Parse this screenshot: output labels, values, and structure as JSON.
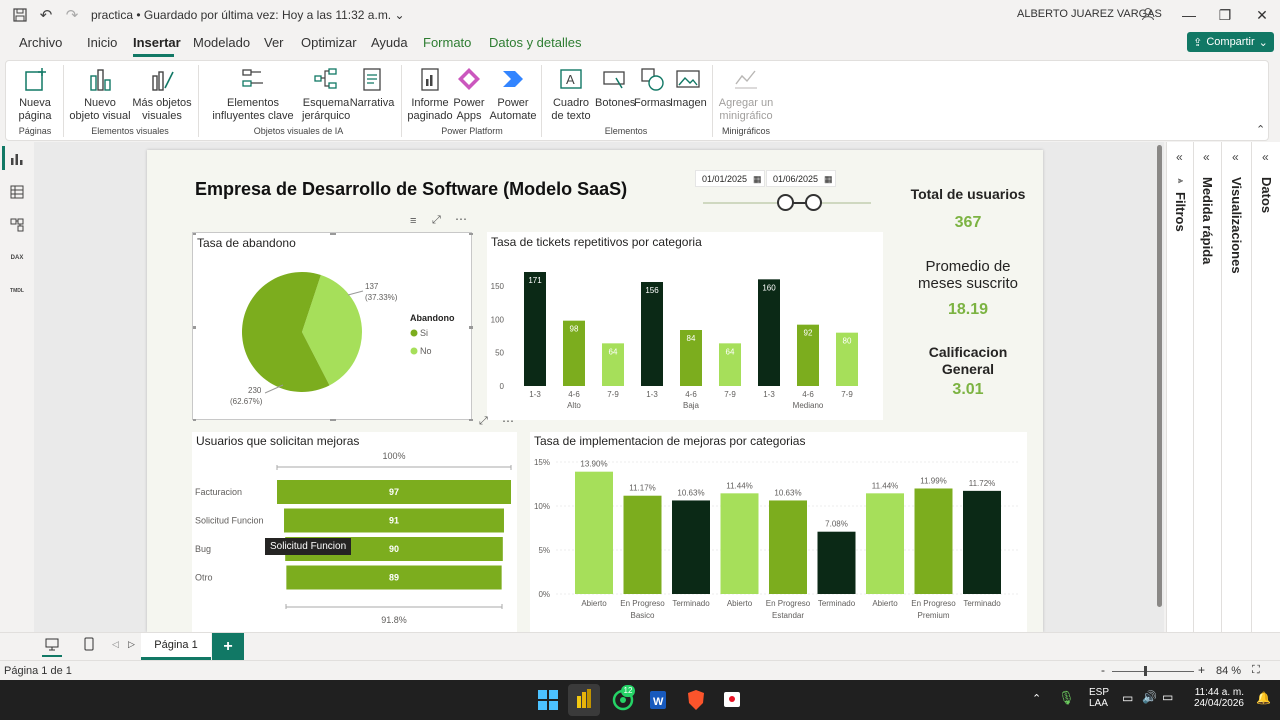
{
  "titlebar": {
    "doc_title": "practica",
    "saved_status": "Guardado por última vez: Hoy a las 11:32 a.m.",
    "user": "ALBERTO JUAREZ VARGAS"
  },
  "menu": {
    "tabs": [
      "Archivo",
      "Inicio",
      "Insertar",
      "Modelado",
      "Ver",
      "Optimizar",
      "Ayuda",
      "Formato",
      "Datos y detalles"
    ],
    "active": "Insertar",
    "share": "Compartir"
  },
  "ribbon": {
    "buttons": {
      "nueva_pagina": "Nueva página",
      "nuevo_objeto": "Nuevo objeto visual",
      "mas_objetos": "Más objetos visuales",
      "influyentes": "Elementos influyentes clave",
      "esquema": "Esquema jerárquico",
      "narrativa": "Narrativa",
      "informe": "Informe paginado",
      "power_apps": "Power Apps",
      "power_automate": "Power Automate",
      "cuadro_texto": "Cuadro de texto",
      "botones": "Botones",
      "formas": "Formas",
      "imagen": "Imagen",
      "minigrafico": "Agregar un minigráfico"
    },
    "groups": {
      "paginas": "Páginas",
      "elementos_visuales": "Elementos visuales",
      "ia": "Objetos visuales de IA",
      "power_platform": "Power Platform",
      "elementos": "Elementos",
      "minigraficos": "Minigráficos"
    }
  },
  "report": {
    "title": "Empresa de Desarrollo de Software (Modelo SaaS)",
    "date_from": "01/01/2025",
    "date_to": "01/06/2025",
    "kpis": [
      {
        "label": "Total de usuarios",
        "value": "367"
      },
      {
        "label": "Promedio de meses suscrito",
        "value": "18.19"
      },
      {
        "label": "Calificacion General",
        "value": "3.01"
      }
    ]
  },
  "panes": {
    "filtros": "Filtros",
    "medida": "Medida rápida",
    "visualizaciones": "Visualizaciones",
    "datos": "Datos"
  },
  "pagetabs": {
    "page1": "Página 1",
    "add": "+"
  },
  "status": {
    "page": "Página 1 de 1",
    "zoom": "84 %"
  },
  "taskbar": {
    "lang1": "ESP",
    "lang2": "LAA",
    "time": "11:44 a. m.",
    "date": "24/04/2026",
    "whatsapp_badge": "12"
  },
  "colors": {
    "dark": "#0b2916",
    "mid": "#7cad1e",
    "light": "#a6df5a",
    "teal": "#117865"
  },
  "chart_data": [
    {
      "id": "abandono",
      "type": "pie",
      "title": "Tasa de abandono",
      "legend_title": "Abandono",
      "slices": [
        {
          "name": "Si",
          "value": 230,
          "pct": "62.67%",
          "color": "#7cad1e"
        },
        {
          "name": "No",
          "value": 137,
          "pct": "37.33%",
          "color": "#a6df5a"
        }
      ]
    },
    {
      "id": "tickets",
      "type": "bar",
      "title": "Tasa de tickets repetitivos por categoria",
      "groups": [
        "Alto",
        "Baja",
        "Mediano"
      ],
      "categories": [
        "1-3",
        "4-6",
        "7-9",
        "1-3",
        "4-6",
        "7-9",
        "1-3",
        "4-6",
        "7-9"
      ],
      "values": [
        171,
        98,
        64,
        156,
        84,
        64,
        160,
        92,
        80
      ],
      "colors": [
        "#0b2916",
        "#7cad1e",
        "#a6df5a",
        "#0b2916",
        "#7cad1e",
        "#a6df5a",
        "#0b2916",
        "#7cad1e",
        "#a6df5a"
      ],
      "yticks": [
        0,
        50,
        100,
        150
      ],
      "ylim": [
        0,
        180
      ]
    },
    {
      "id": "mejoras",
      "type": "bar",
      "orientation": "funnel",
      "title": "Usuarios que solicitan mejoras",
      "top_label": "100%",
      "bottom_label": "91.8%",
      "categories": [
        "Facturacion",
        "Solicitud Funcion",
        "Bug",
        "Otro"
      ],
      "values": [
        97,
        91,
        90,
        89
      ],
      "tooltip": "Solicitud Funcion"
    },
    {
      "id": "implementacion",
      "type": "bar",
      "title": "Tasa de implementacion de mejoras por categorias",
      "groups": [
        "Basico",
        "Estandar",
        "Premium"
      ],
      "categories": [
        "Abierto",
        "En Progreso",
        "Terminado",
        "Abierto",
        "En Progreso",
        "Terminado",
        "Abierto",
        "En Progreso",
        "Terminado"
      ],
      "values": [
        13.9,
        11.17,
        10.63,
        11.44,
        10.63,
        7.08,
        11.44,
        11.99,
        11.72
      ],
      "labels": [
        "13.90%",
        "11.17%",
        "10.63%",
        "11.44%",
        "10.63%",
        "7.08%",
        "11.44%",
        "11.99%",
        "11.72%"
      ],
      "colors": [
        "#a6df5a",
        "#7cad1e",
        "#0b2916",
        "#a6df5a",
        "#7cad1e",
        "#0b2916",
        "#a6df5a",
        "#7cad1e",
        "#0b2916"
      ],
      "yticks": [
        "0%",
        "5%",
        "10%",
        "15%"
      ],
      "ylim": [
        0,
        15
      ]
    }
  ]
}
